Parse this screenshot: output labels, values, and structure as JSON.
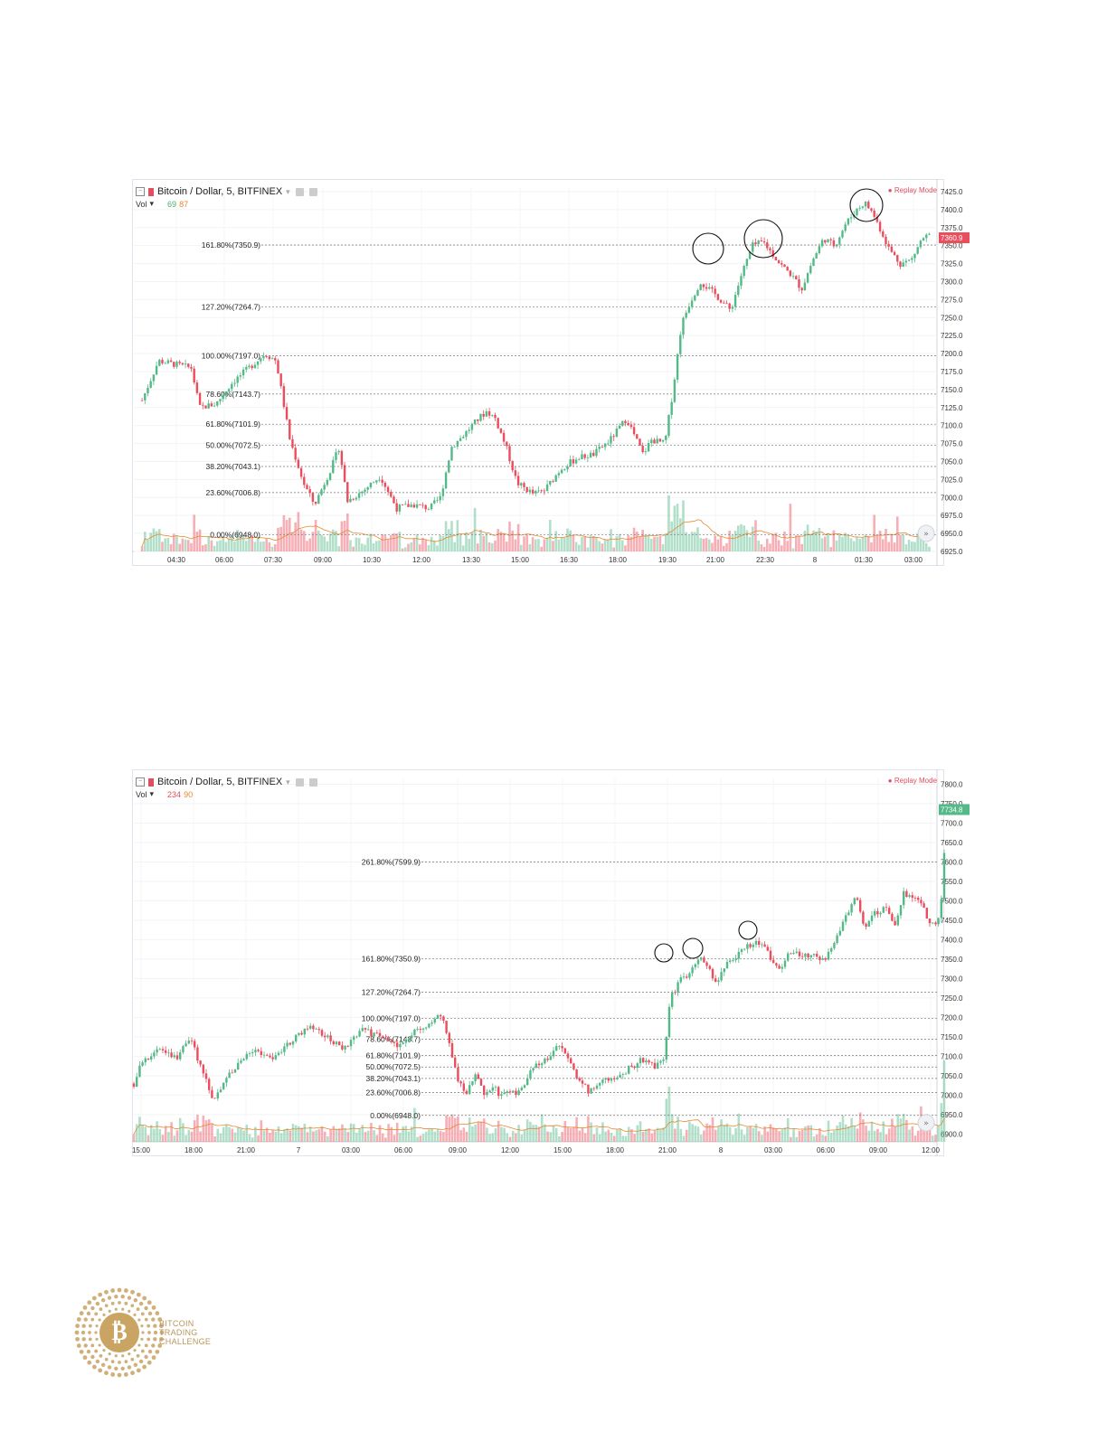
{
  "charts": [
    {
      "title": "Bitcoin / Dollar, 5, BITFINEX",
      "vol_label": "Vol",
      "vol_values": [
        "69",
        "87"
      ],
      "replay": "Replay Mode",
      "last_price": "7360.9",
      "x_ticks": [
        "04:30",
        "06:00",
        "07:30",
        "09:00",
        "10:30",
        "12:00",
        "13:30",
        "15:00",
        "16:30",
        "18:00",
        "19:30",
        "21:00",
        "22:30",
        "8",
        "01:30",
        "03:00"
      ],
      "y_ticks": [
        "7425.0",
        "7400.0",
        "7375.0",
        "7350.0",
        "7325.0",
        "7300.0",
        "7275.0",
        "7250.0",
        "7225.0",
        "7200.0",
        "7175.0",
        "7150.0",
        "7125.0",
        "7100.0",
        "7075.0",
        "7050.0",
        "7025.0",
        "7000.0",
        "6975.0",
        "6950.0",
        "6925.0"
      ],
      "fib_levels": [
        {
          "label": "161.80%(7350.9)",
          "value": 7350.9
        },
        {
          "label": "127.20%(7264.7)",
          "value": 7264.7
        },
        {
          "label": "100.00%(7197.0)",
          "value": 7197.0
        },
        {
          "label": "78.60%(7143.7)",
          "value": 7143.7
        },
        {
          "label": "61.80%(7101.9)",
          "value": 7101.9
        },
        {
          "label": "50.00%(7072.5)",
          "value": 7072.5
        },
        {
          "label": "38.20%(7043.1)",
          "value": 7043.1
        },
        {
          "label": "23.60%(7006.8)",
          "value": 7006.8
        },
        {
          "label": "0.00%(6948.0)",
          "value": 6948.0
        }
      ]
    },
    {
      "title": "Bitcoin / Dollar, 5, BITFINEX",
      "vol_label": "Vol",
      "vol_values": [
        "234",
        "90"
      ],
      "replay": "Replay Mode",
      "last_price": "7734.8",
      "x_ticks": [
        "15:00",
        "18:00",
        "21:00",
        "7",
        "03:00",
        "06:00",
        "09:00",
        "12:00",
        "15:00",
        "18:00",
        "21:00",
        "8",
        "03:00",
        "06:00",
        "09:00",
        "12:00"
      ],
      "y_ticks": [
        "7800.0",
        "7750.0",
        "7700.0",
        "7650.0",
        "7600.0",
        "7550.0",
        "7500.0",
        "7450.0",
        "7400.0",
        "7350.0",
        "7300.0",
        "7250.0",
        "7200.0",
        "7150.0",
        "7100.0",
        "7050.0",
        "7000.0",
        "6950.0",
        "6900.0"
      ],
      "fib_levels": [
        {
          "label": "261.80%(7599.9)",
          "value": 7599.9
        },
        {
          "label": "161.80%(7350.9)",
          "value": 7350.9
        },
        {
          "label": "127.20%(7264.7)",
          "value": 7264.7
        },
        {
          "label": "100.00%(7197.0)",
          "value": 7197.0
        },
        {
          "label": "78.60%(7143.7)",
          "value": 7143.7
        },
        {
          "label": "61.80%(7101.9)",
          "value": 7101.9
        },
        {
          "label": "50.00%(7072.5)",
          "value": 7072.5
        },
        {
          "label": "38.20%(7043.1)",
          "value": 7043.1
        },
        {
          "label": "23.60%(7006.8)",
          "value": 7006.8
        },
        {
          "label": "0.00%(6948.0)",
          "value": 6948.0
        }
      ]
    }
  ],
  "chart_data": [
    {
      "type": "candlestick",
      "title": "Bitcoin / Dollar, 5, BITFINEX",
      "ylim": [
        6925,
        7430
      ],
      "y_scale_unit": "USD",
      "x_tick_labels": [
        "04:30",
        "06:00",
        "07:30",
        "09:00",
        "10:30",
        "12:00",
        "13:30",
        "15:00",
        "16:30",
        "18:00",
        "19:30",
        "21:00",
        "22:30",
        "8",
        "01:30",
        "03:00"
      ],
      "close_path": [
        [
          "03:45",
          7135
        ],
        [
          "04:15",
          7190
        ],
        [
          "04:45",
          7185
        ],
        [
          "05:15",
          7180
        ],
        [
          "05:30",
          7125
        ],
        [
          "06:00",
          7130
        ],
        [
          "06:30",
          7160
        ],
        [
          "07:00",
          7180
        ],
        [
          "07:30",
          7200
        ],
        [
          "07:50",
          7190
        ],
        [
          "08:15",
          7080
        ],
        [
          "08:40",
          7020
        ],
        [
          "09:00",
          6990
        ],
        [
          "09:30",
          7040
        ],
        [
          "09:45",
          7070
        ],
        [
          "10:00",
          6995
        ],
        [
          "10:30",
          7010
        ],
        [
          "11:00",
          7030
        ],
        [
          "11:30",
          6985
        ],
        [
          "12:00",
          6990
        ],
        [
          "12:30",
          6985
        ],
        [
          "12:50",
          7000
        ],
        [
          "13:10",
          7070
        ],
        [
          "13:30",
          7085
        ],
        [
          "14:00",
          7110
        ],
        [
          "14:15",
          7120
        ],
        [
          "14:30",
          7110
        ],
        [
          "14:50",
          7070
        ],
        [
          "15:10",
          7020
        ],
        [
          "15:40",
          7005
        ],
        [
          "16:00",
          7010
        ],
        [
          "16:30",
          7040
        ],
        [
          "17:00",
          7055
        ],
        [
          "17:30",
          7060
        ],
        [
          "18:00",
          7080
        ],
        [
          "18:30",
          7110
        ],
        [
          "19:00",
          7060
        ],
        [
          "19:15",
          7080
        ],
        [
          "19:40",
          7075
        ],
        [
          "19:55",
          7150
        ],
        [
          "20:10",
          7240
        ],
        [
          "20:25",
          7270
        ],
        [
          "20:45",
          7300
        ],
        [
          "21:00",
          7290
        ],
        [
          "21:15",
          7280
        ],
        [
          "21:40",
          7260
        ],
        [
          "22:00",
          7310
        ],
        [
          "22:20",
          7350
        ],
        [
          "22:40",
          7355
        ],
        [
          "22:55",
          7340
        ],
        [
          "23:10",
          7325
        ],
        [
          "23:30",
          7310
        ],
        [
          "23:50",
          7290
        ],
        [
          "00:10",
          7330
        ],
        [
          "00:30",
          7360
        ],
        [
          "00:50",
          7350
        ],
        [
          "01:10",
          7380
        ],
        [
          "01:30",
          7400
        ],
        [
          "01:45",
          7410
        ],
        [
          "02:00",
          7395
        ],
        [
          "02:15",
          7370
        ],
        [
          "02:30",
          7345
        ],
        [
          "02:50",
          7325
        ],
        [
          "03:10",
          7330
        ],
        [
          "03:30",
          7360
        ],
        [
          "03:45",
          7365
        ]
      ],
      "annotations": [
        "circle near 21:00 at 7350",
        "circle near 22:30 at 7355",
        "circle near 01:30 at 7410"
      ]
    },
    {
      "type": "candlestick",
      "title": "Bitcoin / Dollar, 5, BITFINEX",
      "ylim": [
        6880,
        7815
      ],
      "y_scale_unit": "USD",
      "x_tick_labels": [
        "15:00",
        "18:00",
        "21:00",
        "7",
        "03:00",
        "06:00",
        "09:00",
        "12:00",
        "15:00",
        "18:00",
        "21:00",
        "8",
        "03:00",
        "06:00",
        "09:00",
        "12:00"
      ],
      "close_path": [
        [
          "14:00",
          7030
        ],
        [
          "14:30",
          7090
        ],
        [
          "15:30",
          7120
        ],
        [
          "16:30",
          7095
        ],
        [
          "17:15",
          7150
        ],
        [
          "17:45",
          7080
        ],
        [
          "18:30",
          6990
        ],
        [
          "19:15",
          7040
        ],
        [
          "20:00",
          7080
        ],
        [
          "21:00",
          7120
        ],
        [
          "22:00",
          7090
        ],
        [
          "23:00",
          7140
        ],
        [
          "00:00",
          7180
        ],
        [
          "01:00",
          7150
        ],
        [
          "02:00",
          7120
        ],
        [
          "03:00",
          7170
        ],
        [
          "04:00",
          7150
        ],
        [
          "05:00",
          7130
        ],
        [
          "06:00",
          7160
        ],
        [
          "06:45",
          7180
        ],
        [
          "07:15",
          7200
        ],
        [
          "07:45",
          7190
        ],
        [
          "08:10",
          7100
        ],
        [
          "08:30",
          7040
        ],
        [
          "09:00",
          7010
        ],
        [
          "09:30",
          7050
        ],
        [
          "10:00",
          7005
        ],
        [
          "10:30",
          7020
        ],
        [
          "11:00",
          7000
        ],
        [
          "12:00",
          7005
        ],
        [
          "12:45",
          7070
        ],
        [
          "13:30",
          7090
        ],
        [
          "14:15",
          7130
        ],
        [
          "14:45",
          7100
        ],
        [
          "15:15",
          7050
        ],
        [
          "16:00",
          7010
        ],
        [
          "17:00",
          7040
        ],
        [
          "18:00",
          7060
        ],
        [
          "19:00",
          7090
        ],
        [
          "19:45",
          7075
        ],
        [
          "20:15",
          7090
        ],
        [
          "20:40",
          7250
        ],
        [
          "21:15",
          7300
        ],
        [
          "21:45",
          7310
        ],
        [
          "22:15",
          7355
        ],
        [
          "22:45",
          7340
        ],
        [
          "23:15",
          7290
        ],
        [
          "00:00",
          7345
        ],
        [
          "00:45",
          7370
        ],
        [
          "01:30",
          7400
        ],
        [
          "02:00",
          7385
        ],
        [
          "02:30",
          7340
        ],
        [
          "03:00",
          7330
        ],
        [
          "03:30",
          7370
        ],
        [
          "04:30",
          7360
        ],
        [
          "05:30",
          7350
        ],
        [
          "06:00",
          7390
        ],
        [
          "06:30",
          7450
        ],
        [
          "07:15",
          7510
        ],
        [
          "07:45",
          7430
        ],
        [
          "08:15",
          7470
        ],
        [
          "09:00",
          7480
        ],
        [
          "09:30",
          7440
        ],
        [
          "10:00",
          7520
        ],
        [
          "10:30",
          7500
        ],
        [
          "11:00",
          7500
        ],
        [
          "11:30",
          7430
        ],
        [
          "12:00",
          7460
        ],
        [
          "12:10",
          7520
        ],
        [
          "12:20",
          7650
        ],
        [
          "12:25",
          7734.8
        ]
      ],
      "annotations": [
        "circle near 21:00 at 7350",
        "circle near 22:30 at 7360",
        "circle near 01:30 at 7410"
      ]
    }
  ]
}
